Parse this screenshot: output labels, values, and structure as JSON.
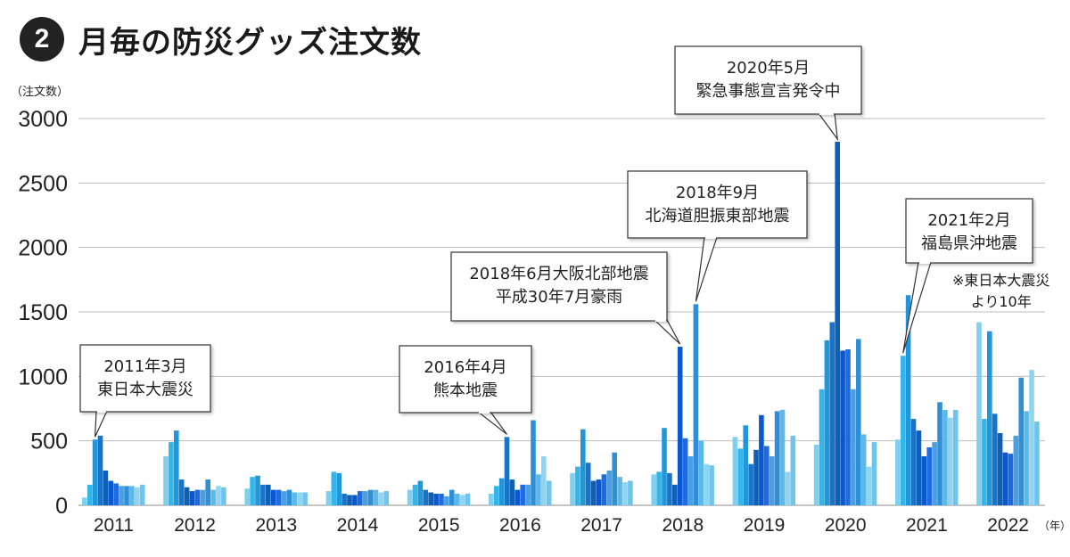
{
  "header": {
    "number": "2",
    "title": "月毎の防災グッズ注文数"
  },
  "colors": [
    "#80CFEE",
    "#33B5EA",
    "#2196D9",
    "#1A73C7",
    "#0F5FB5",
    "#0A58D0",
    "#1E6BE0",
    "#4A9FE0",
    "#2E8ED6",
    "#5CB8E8",
    "#90D5F0",
    "#6EC4EC"
  ],
  "chart_data": {
    "type": "bar",
    "ylabel": "（注文数）",
    "xunit": "（年）",
    "ylim": [
      0,
      3000
    ],
    "yticks": [
      0,
      500,
      1000,
      1500,
      2000,
      2500,
      3000
    ],
    "grid": true,
    "series": [
      {
        "year": "2011",
        "values": [
          60,
          160,
          510,
          540,
          270,
          190,
          170,
          150,
          150,
          150,
          140,
          160
        ]
      },
      {
        "year": "2012",
        "values": [
          380,
          490,
          580,
          200,
          140,
          110,
          120,
          120,
          200,
          120,
          150,
          140
        ]
      },
      {
        "year": "2013",
        "values": [
          130,
          220,
          230,
          160,
          160,
          120,
          120,
          110,
          120,
          100,
          100,
          100
        ]
      },
      {
        "year": "2014",
        "values": [
          110,
          260,
          250,
          90,
          80,
          80,
          110,
          110,
          120,
          120,
          100,
          110
        ]
      },
      {
        "year": "2015",
        "values": [
          120,
          160,
          190,
          120,
          100,
          90,
          90,
          70,
          120,
          90,
          80,
          90
        ]
      },
      {
        "year": "2016",
        "values": [
          90,
          150,
          210,
          530,
          200,
          120,
          160,
          160,
          660,
          240,
          380,
          190
        ]
      },
      {
        "year": "2017",
        "values": [
          250,
          300,
          590,
          330,
          190,
          200,
          240,
          270,
          410,
          220,
          180,
          190
        ]
      },
      {
        "year": "2018",
        "values": [
          240,
          260,
          600,
          250,
          160,
          1230,
          520,
          380,
          1560,
          500,
          320,
          310
        ]
      },
      {
        "year": "2019",
        "values": [
          530,
          440,
          620,
          320,
          430,
          700,
          460,
          380,
          730,
          740,
          260,
          540
        ]
      },
      {
        "year": "2020",
        "values": [
          470,
          900,
          1280,
          1420,
          2820,
          1200,
          1210,
          900,
          1290,
          550,
          300,
          490
        ]
      },
      {
        "year": "2021",
        "values": [
          510,
          1160,
          1630,
          670,
          580,
          380,
          450,
          490,
          800,
          740,
          680,
          740
        ]
      },
      {
        "year": "2022",
        "values": [
          1420,
          670,
          1350,
          710,
          560,
          410,
          400,
          540,
          990,
          730,
          1050,
          650
        ]
      }
    ],
    "annotations": [
      {
        "text": [
          "2011年3月",
          "東日本大震災"
        ],
        "year": "2011",
        "month": 3
      },
      {
        "text": [
          "2016年4月",
          "熊本地震"
        ],
        "year": "2016",
        "month": 4
      },
      {
        "text": [
          "2018年6月大阪北部地震",
          "平成30年7月豪雨"
        ],
        "year": "2018",
        "month": 6
      },
      {
        "text": [
          "2018年9月",
          "北海道胆振東部地震"
        ],
        "year": "2018",
        "month": 9
      },
      {
        "text": [
          "2020年5月",
          "緊急事態宣言発令中"
        ],
        "year": "2020",
        "month": 5
      },
      {
        "text": [
          "2021年2月",
          "福島県沖地震"
        ],
        "year": "2021",
        "month": 2
      }
    ],
    "note": [
      "※東日本大震災",
      "より10年"
    ]
  }
}
